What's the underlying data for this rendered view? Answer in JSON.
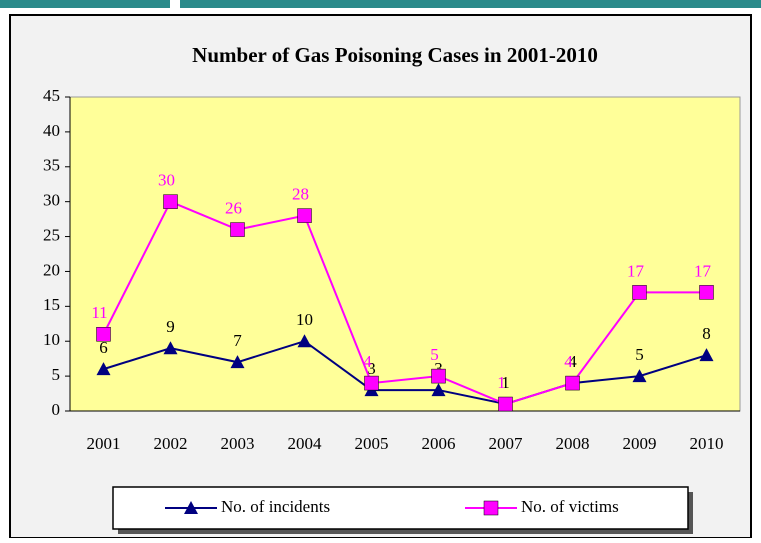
{
  "chart_data": {
    "type": "line",
    "title": "Number of Gas Poisoning Cases in 2001-2010",
    "categories": [
      "2001",
      "2002",
      "2003",
      "2004",
      "2005",
      "2006",
      "2007",
      "2008",
      "2009",
      "2010"
    ],
    "series": [
      {
        "name": "No. of incidents",
        "color": "#000080",
        "marker": "triangle",
        "values": [
          6,
          9,
          7,
          10,
          3,
          3,
          1,
          4,
          5,
          8
        ]
      },
      {
        "name": "No. of victims",
        "color": "#ff00ff",
        "marker": "square",
        "values": [
          11,
          30,
          26,
          28,
          4,
          5,
          1,
          4,
          17,
          17
        ]
      }
    ],
    "ylim": [
      0,
      45
    ],
    "yticks": [
      0,
      5,
      10,
      15,
      20,
      25,
      30,
      35,
      40,
      45
    ],
    "grid": false,
    "legend": "bottom"
  }
}
